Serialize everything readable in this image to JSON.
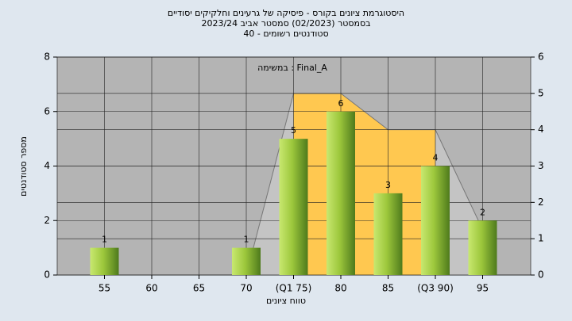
{
  "chart_data": {
    "type": "bar",
    "title_lines": [
      "היסטוגרמת ציונים בקורס - פיסיקה של גרעינים וחלקיקים יסודיים",
      "בסמסטר  (02/2023)  סמסטר אביב 2023/24",
      "סטודנטים רשומים - 40"
    ],
    "annotation": "במשימה : Final_A",
    "ylabel": "מספר סטודנטים",
    "xlabel": "טווח ציונים",
    "categories": [
      "55",
      "60",
      "65",
      "70",
      "(Q1 75)",
      "80",
      "85",
      "(Q3 90)",
      "95"
    ],
    "values": [
      1,
      0,
      0,
      1,
      5,
      6,
      3,
      4,
      2
    ],
    "value_labels": [
      "1",
      null,
      null,
      "1",
      "5",
      "6",
      "3",
      "4",
      "2"
    ],
    "color": "#9dc83c",
    "ylim": [
      0,
      8
    ],
    "yticks": [
      0,
      2,
      4,
      6,
      8
    ],
    "y2lim": [
      0,
      6
    ],
    "y2ticks": [
      0,
      1,
      2,
      3,
      4,
      5,
      6
    ],
    "area": {
      "axis": "y2",
      "values": [
        null,
        null,
        null,
        0,
        5,
        5,
        4,
        4,
        1.25
      ],
      "color": "#ffc850",
      "outer_color": "#c4c4c4"
    },
    "grid": true
  }
}
